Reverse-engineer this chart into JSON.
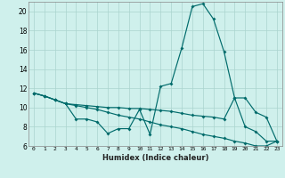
{
  "xlabel": "Humidex (Indice chaleur)",
  "bg_color": "#cff0ec",
  "grid_color": "#aad4ce",
  "line_color": "#006b6b",
  "xlim": [
    -0.5,
    23.5
  ],
  "ylim": [
    6,
    21
  ],
  "yticks": [
    6,
    8,
    10,
    12,
    14,
    16,
    18,
    20
  ],
  "xticks": [
    0,
    1,
    2,
    3,
    4,
    5,
    6,
    7,
    8,
    9,
    10,
    11,
    12,
    13,
    14,
    15,
    16,
    17,
    18,
    19,
    20,
    21,
    22,
    23
  ],
  "series": [
    [
      11.5,
      11.2,
      10.8,
      10.4,
      8.8,
      8.8,
      8.5,
      7.3,
      7.8,
      7.8,
      9.8,
      7.2,
      12.2,
      12.5,
      16.2,
      20.5,
      20.8,
      19.2,
      15.8,
      11.0,
      8.0,
      7.5,
      6.5,
      6.5
    ],
    [
      11.5,
      11.2,
      10.8,
      10.4,
      10.3,
      10.2,
      10.1,
      10.0,
      10.0,
      9.9,
      9.9,
      9.8,
      9.7,
      9.6,
      9.4,
      9.2,
      9.1,
      9.0,
      8.8,
      11.0,
      11.0,
      9.5,
      9.0,
      6.5
    ],
    [
      11.5,
      11.2,
      10.8,
      10.4,
      10.2,
      10.0,
      9.8,
      9.5,
      9.2,
      9.0,
      8.8,
      8.5,
      8.2,
      8.0,
      7.8,
      7.5,
      7.2,
      7.0,
      6.8,
      6.5,
      6.3,
      6.0,
      6.0,
      6.5
    ]
  ]
}
